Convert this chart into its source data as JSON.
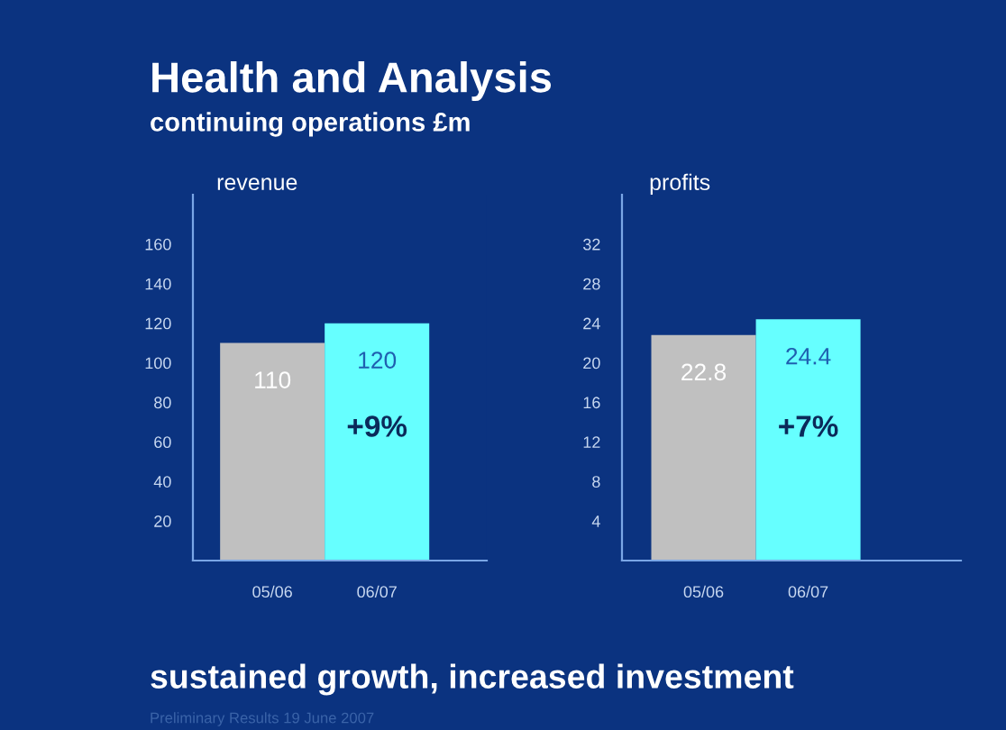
{
  "chart_data": [
    {
      "type": "bar",
      "title": "Health and Analysis",
      "subtitle": "continuing operations £m",
      "ylabel": "revenue",
      "categories": [
        "05/06",
        "06/07"
      ],
      "values": [
        110,
        120
      ],
      "colors": [
        "#c0c0c0",
        "#66ffff"
      ],
      "ylim": [
        0,
        185
      ],
      "yticks": [
        20,
        40,
        60,
        80,
        100,
        120,
        140,
        160
      ],
      "data_labels": true,
      "grid": false,
      "legend": false,
      "annotations": [
        "+9%"
      ]
    },
    {
      "type": "bar",
      "ylabel": "profits",
      "categories": [
        "05/06",
        "06/07"
      ],
      "values": [
        22.8,
        24.4
      ],
      "colors": [
        "#c0c0c0",
        "#66ffff"
      ],
      "ylim": [
        0,
        37
      ],
      "yticks": [
        4,
        8,
        12,
        16,
        20,
        24,
        28,
        32
      ],
      "data_labels": true,
      "grid": false,
      "legend": false,
      "annotations": [
        "+7%",
        "sustained growth, increased investment",
        "Preliminary Results 19 June 2007"
      ]
    }
  ]
}
